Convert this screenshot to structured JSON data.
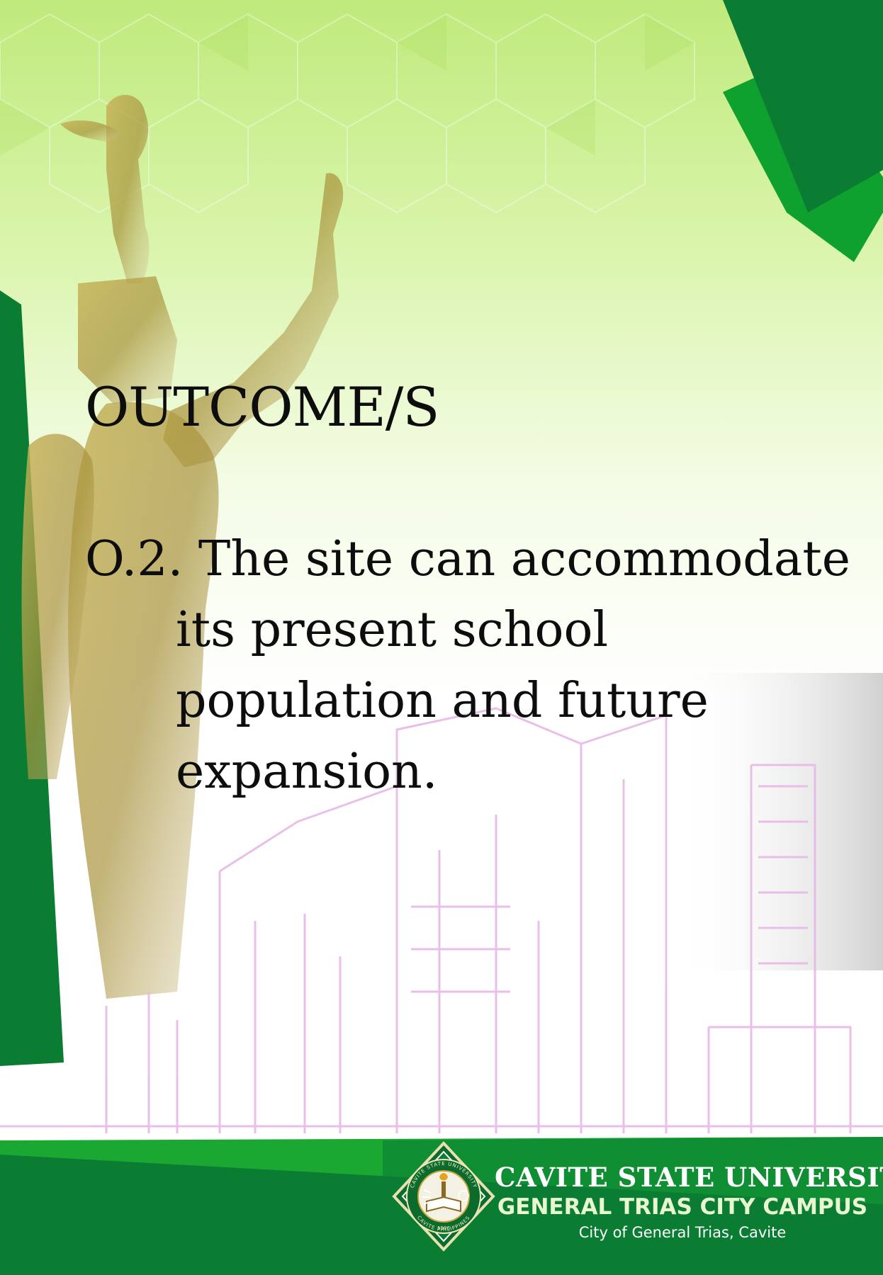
{
  "slide": {
    "heading": "OUTCOME/S",
    "outcome": {
      "number": "O.2.",
      "lines": [
        "The site can accommodate",
        "its present school",
        "population and future",
        "expansion."
      ]
    }
  },
  "footer": {
    "university": "CAVITE STATE UNIVERSITY",
    "campus": "GENERAL TRIAS CITY CAMPUS",
    "location": "City of General Trias, Cavite",
    "seal": {
      "ring_text_top": "CAVITE STATE UNIVERSITY",
      "ring_text_bottom": "CAVITE PHILIPPINES",
      "year": "1906"
    }
  },
  "colors": {
    "dark_green": "#0a7d33",
    "bright_green": "#1aa833",
    "light_green": "#c9ef8f",
    "outline_pink": "#e7b9e6",
    "statue_gold": "#b8a04a"
  }
}
